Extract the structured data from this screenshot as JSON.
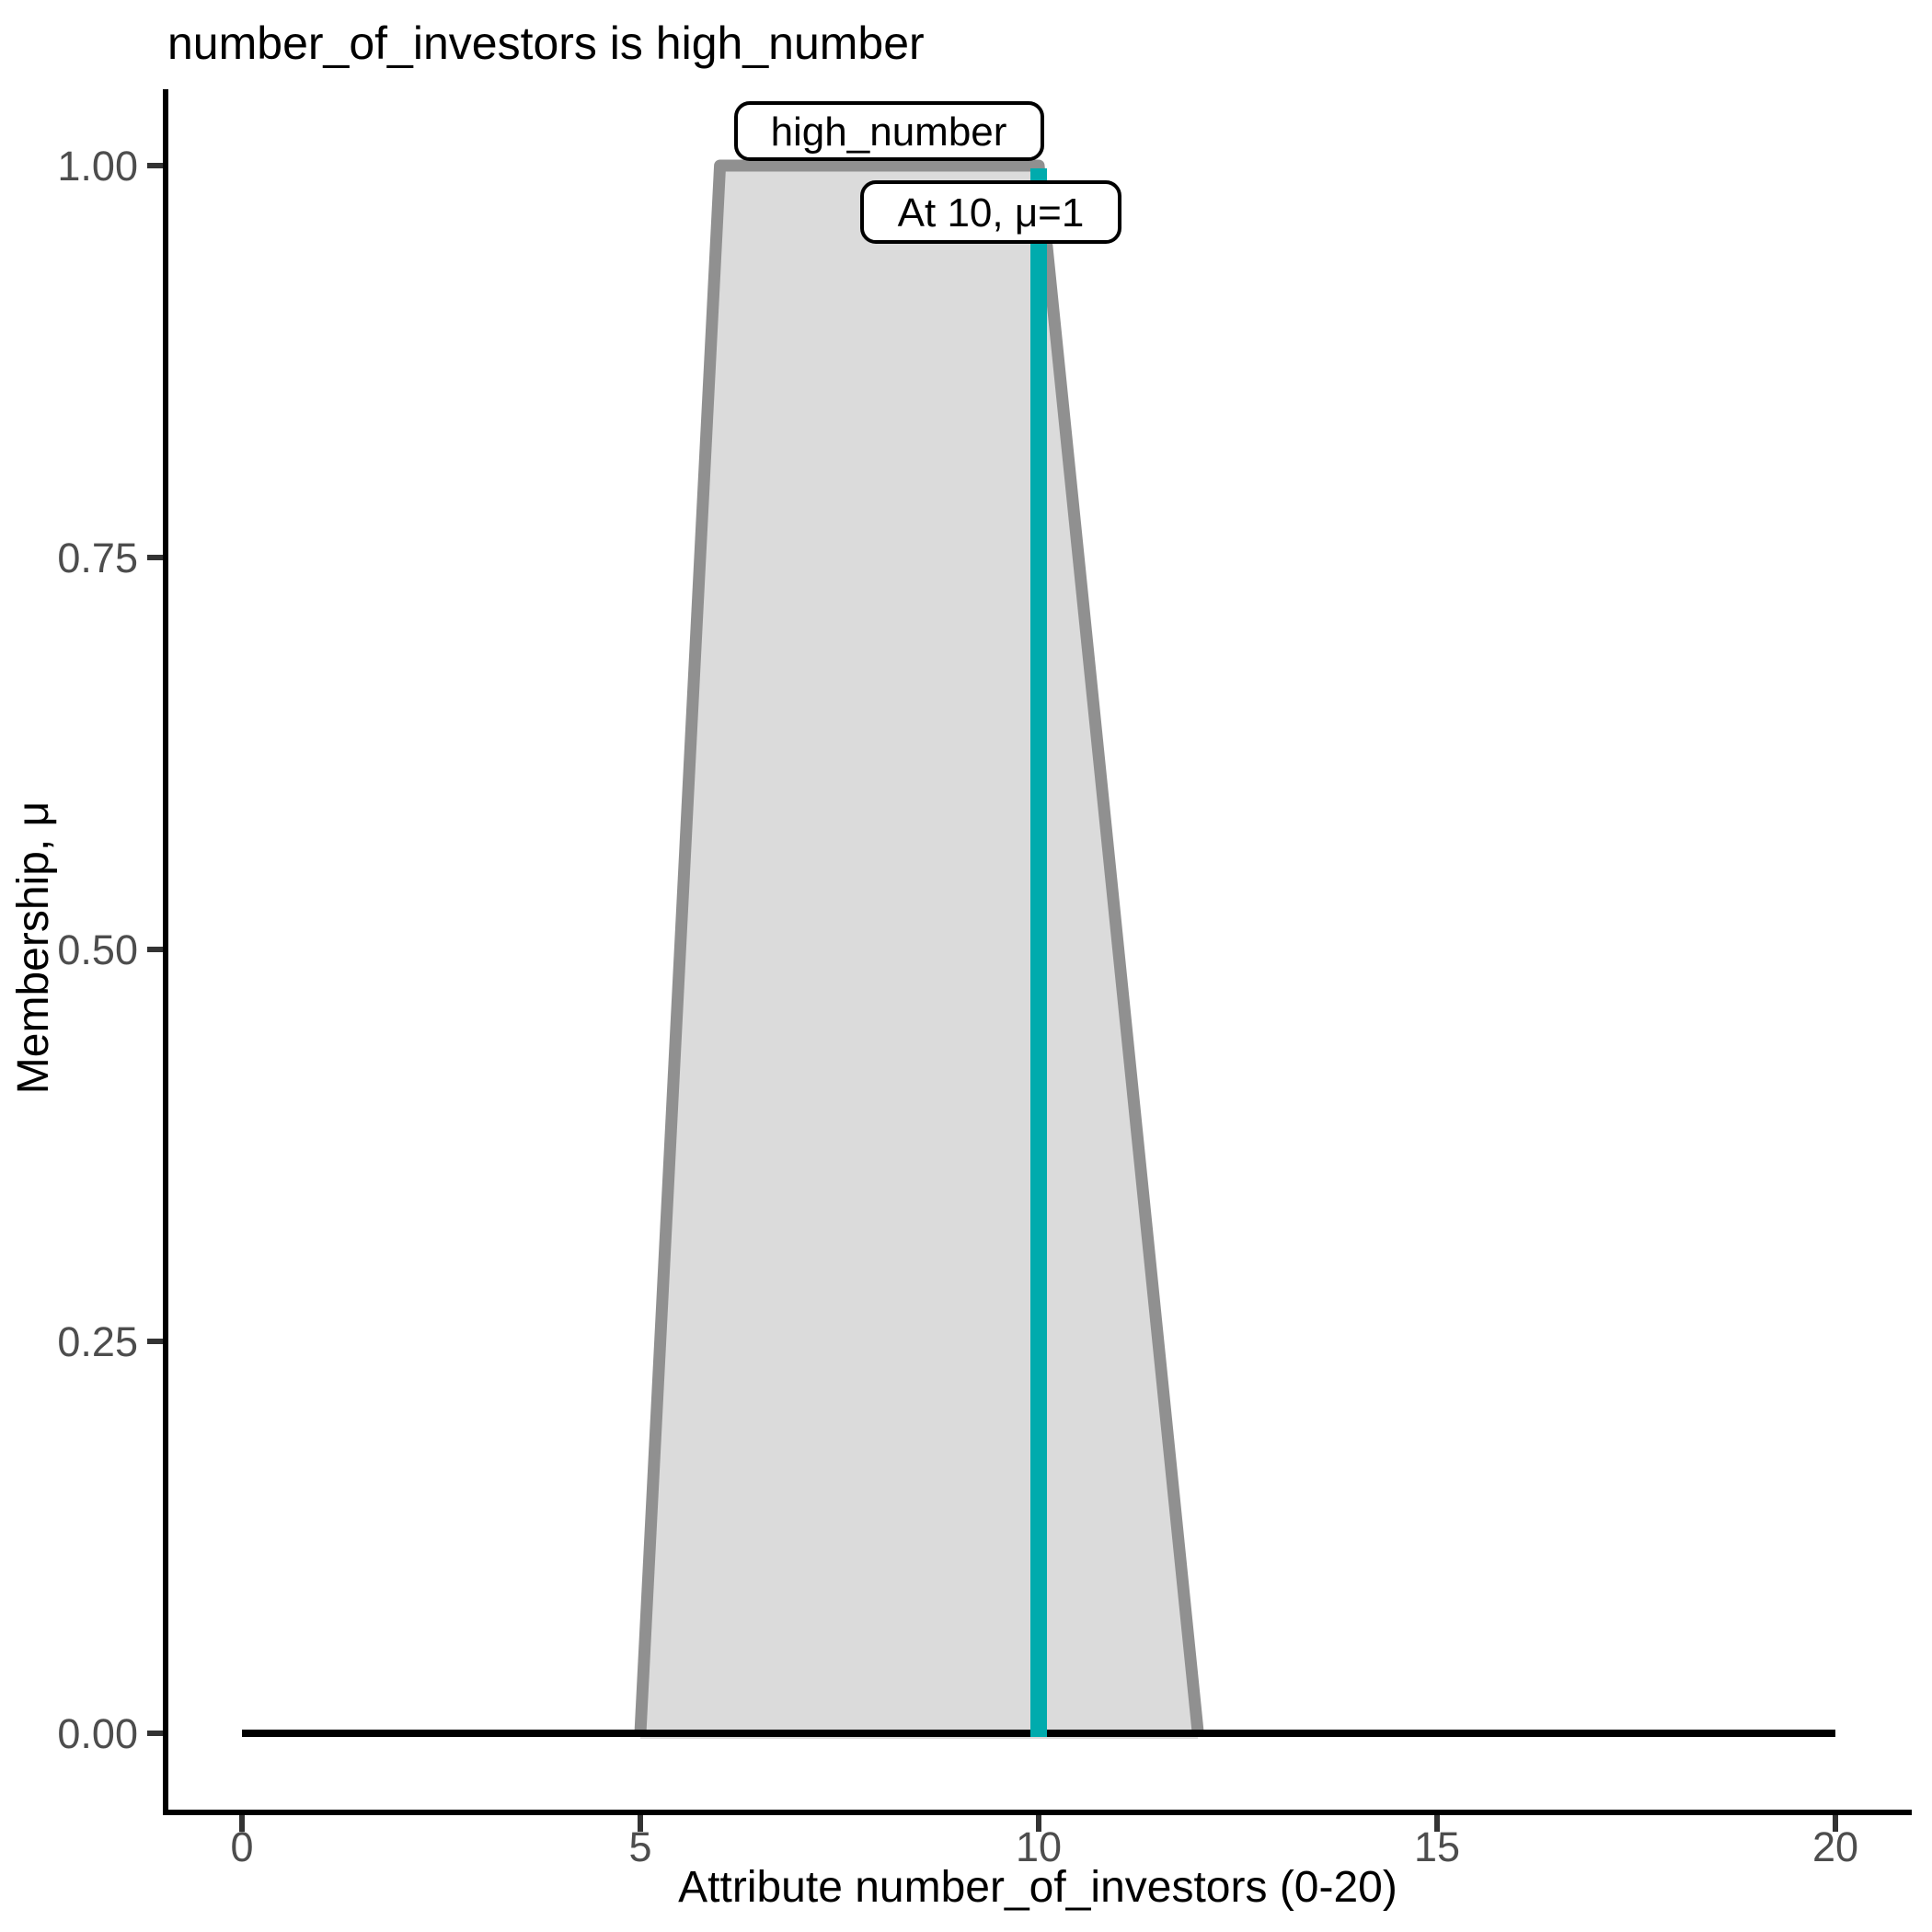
{
  "chart_data": {
    "type": "area",
    "title": "number_of_investors is high_number",
    "xlabel": "Attribute number_of_investors (0-20)",
    "ylabel": "Membership, μ",
    "xlim": [
      0,
      20
    ],
    "ylim": [
      0,
      1
    ],
    "grid": false,
    "legend": false,
    "x_tick_values": [
      0,
      5,
      10,
      15,
      20
    ],
    "x_tick_labels": [
      "0",
      "5",
      "10",
      "15",
      "20"
    ],
    "y_tick_values": [
      0,
      0.25,
      0.5,
      0.75,
      1
    ],
    "y_tick_labels": [
      "0.00",
      "0.25",
      "0.50",
      "0.75",
      "1.00"
    ],
    "series": [
      {
        "name": "high_number",
        "type": "trapezoid-membership-function",
        "points_x": [
          5,
          6,
          10,
          12
        ],
        "points_mu": [
          0,
          1,
          1,
          0
        ],
        "fill": "#DBDBDB",
        "stroke": "#909090"
      },
      {
        "name": "zero-membership-baseline",
        "type": "line",
        "points_x": [
          0,
          20
        ],
        "points_mu": [
          0,
          0
        ],
        "stroke": "#000000"
      },
      {
        "name": "input-value-marker",
        "type": "vline",
        "x": 10,
        "mu": 1,
        "stroke": "#00ABAD"
      }
    ],
    "annotations": [
      {
        "text": "high_number"
      },
      {
        "text": "At 10, μ=1"
      }
    ],
    "colors": {
      "axis": "#000000",
      "tick_mark": "#333333",
      "tick_text": "#4D4D4D",
      "title_text": "#000000",
      "label_box_fill": "#FFFFFF",
      "label_box_border": "#000000"
    }
  }
}
